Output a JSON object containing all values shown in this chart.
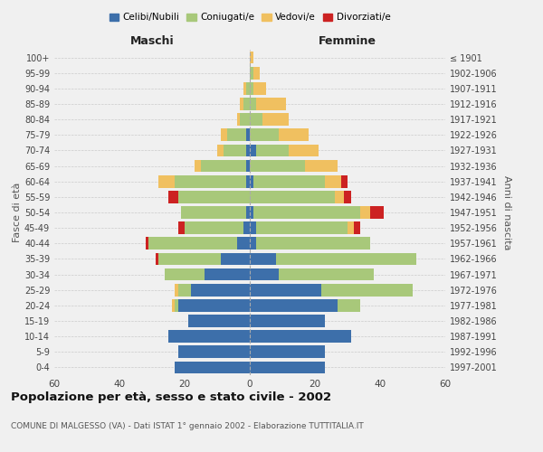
{
  "age_groups": [
    "0-4",
    "5-9",
    "10-14",
    "15-19",
    "20-24",
    "25-29",
    "30-34",
    "35-39",
    "40-44",
    "45-49",
    "50-54",
    "55-59",
    "60-64",
    "65-69",
    "70-74",
    "75-79",
    "80-84",
    "85-89",
    "90-94",
    "95-99",
    "100+"
  ],
  "birth_years": [
    "1997-2001",
    "1992-1996",
    "1987-1991",
    "1982-1986",
    "1977-1981",
    "1972-1976",
    "1967-1971",
    "1962-1966",
    "1957-1961",
    "1952-1956",
    "1947-1951",
    "1942-1946",
    "1937-1941",
    "1932-1936",
    "1927-1931",
    "1922-1926",
    "1917-1921",
    "1912-1916",
    "1907-1911",
    "1902-1906",
    "≤ 1901"
  ],
  "male": {
    "celibe": [
      23,
      22,
      25,
      19,
      22,
      18,
      14,
      9,
      4,
      2,
      1,
      0,
      1,
      1,
      1,
      1,
      0,
      0,
      0,
      0,
      0
    ],
    "coniugato": [
      0,
      0,
      0,
      0,
      1,
      4,
      12,
      19,
      27,
      18,
      20,
      22,
      22,
      14,
      7,
      6,
      3,
      2,
      1,
      0,
      0
    ],
    "vedovo": [
      0,
      0,
      0,
      0,
      1,
      1,
      0,
      0,
      0,
      0,
      0,
      0,
      5,
      2,
      2,
      2,
      1,
      1,
      1,
      0,
      0
    ],
    "divorziato": [
      0,
      0,
      0,
      0,
      0,
      0,
      0,
      1,
      1,
      2,
      0,
      3,
      0,
      0,
      0,
      0,
      0,
      0,
      0,
      0,
      0
    ]
  },
  "female": {
    "nubile": [
      23,
      23,
      31,
      23,
      27,
      22,
      9,
      8,
      2,
      2,
      1,
      0,
      1,
      0,
      2,
      0,
      0,
      0,
      0,
      0,
      0
    ],
    "coniugata": [
      0,
      0,
      0,
      0,
      7,
      28,
      29,
      43,
      35,
      28,
      33,
      26,
      22,
      17,
      10,
      9,
      4,
      2,
      1,
      1,
      0
    ],
    "vedova": [
      0,
      0,
      0,
      0,
      0,
      0,
      0,
      0,
      0,
      2,
      3,
      3,
      5,
      10,
      9,
      9,
      8,
      9,
      4,
      2,
      1
    ],
    "divorziata": [
      0,
      0,
      0,
      0,
      0,
      0,
      0,
      0,
      0,
      2,
      4,
      2,
      2,
      0,
      0,
      0,
      0,
      0,
      0,
      0,
      0
    ]
  },
  "colors": {
    "celibe": "#3d6faa",
    "coniugato": "#a8c87a",
    "vedovo": "#f0c060",
    "divorziato": "#cc2222"
  },
  "xlim": 60,
  "title": "Popolazione per età, sesso e stato civile - 2002",
  "subtitle": "COMUNE DI MALGESSO (VA) - Dati ISTAT 1° gennaio 2002 - Elaborazione TUTTITALIA.IT",
  "xlabel_left": "Maschi",
  "xlabel_right": "Femmine",
  "ylabel_left": "Fasce di età",
  "ylabel_right": "Anni di nascita",
  "legend_labels": [
    "Celibi/Nubili",
    "Coniugati/e",
    "Vedovi/e",
    "Divorziati/e"
  ],
  "background_color": "#f0f0f0",
  "xticks": [
    60,
    40,
    20,
    0,
    20,
    40,
    60
  ]
}
